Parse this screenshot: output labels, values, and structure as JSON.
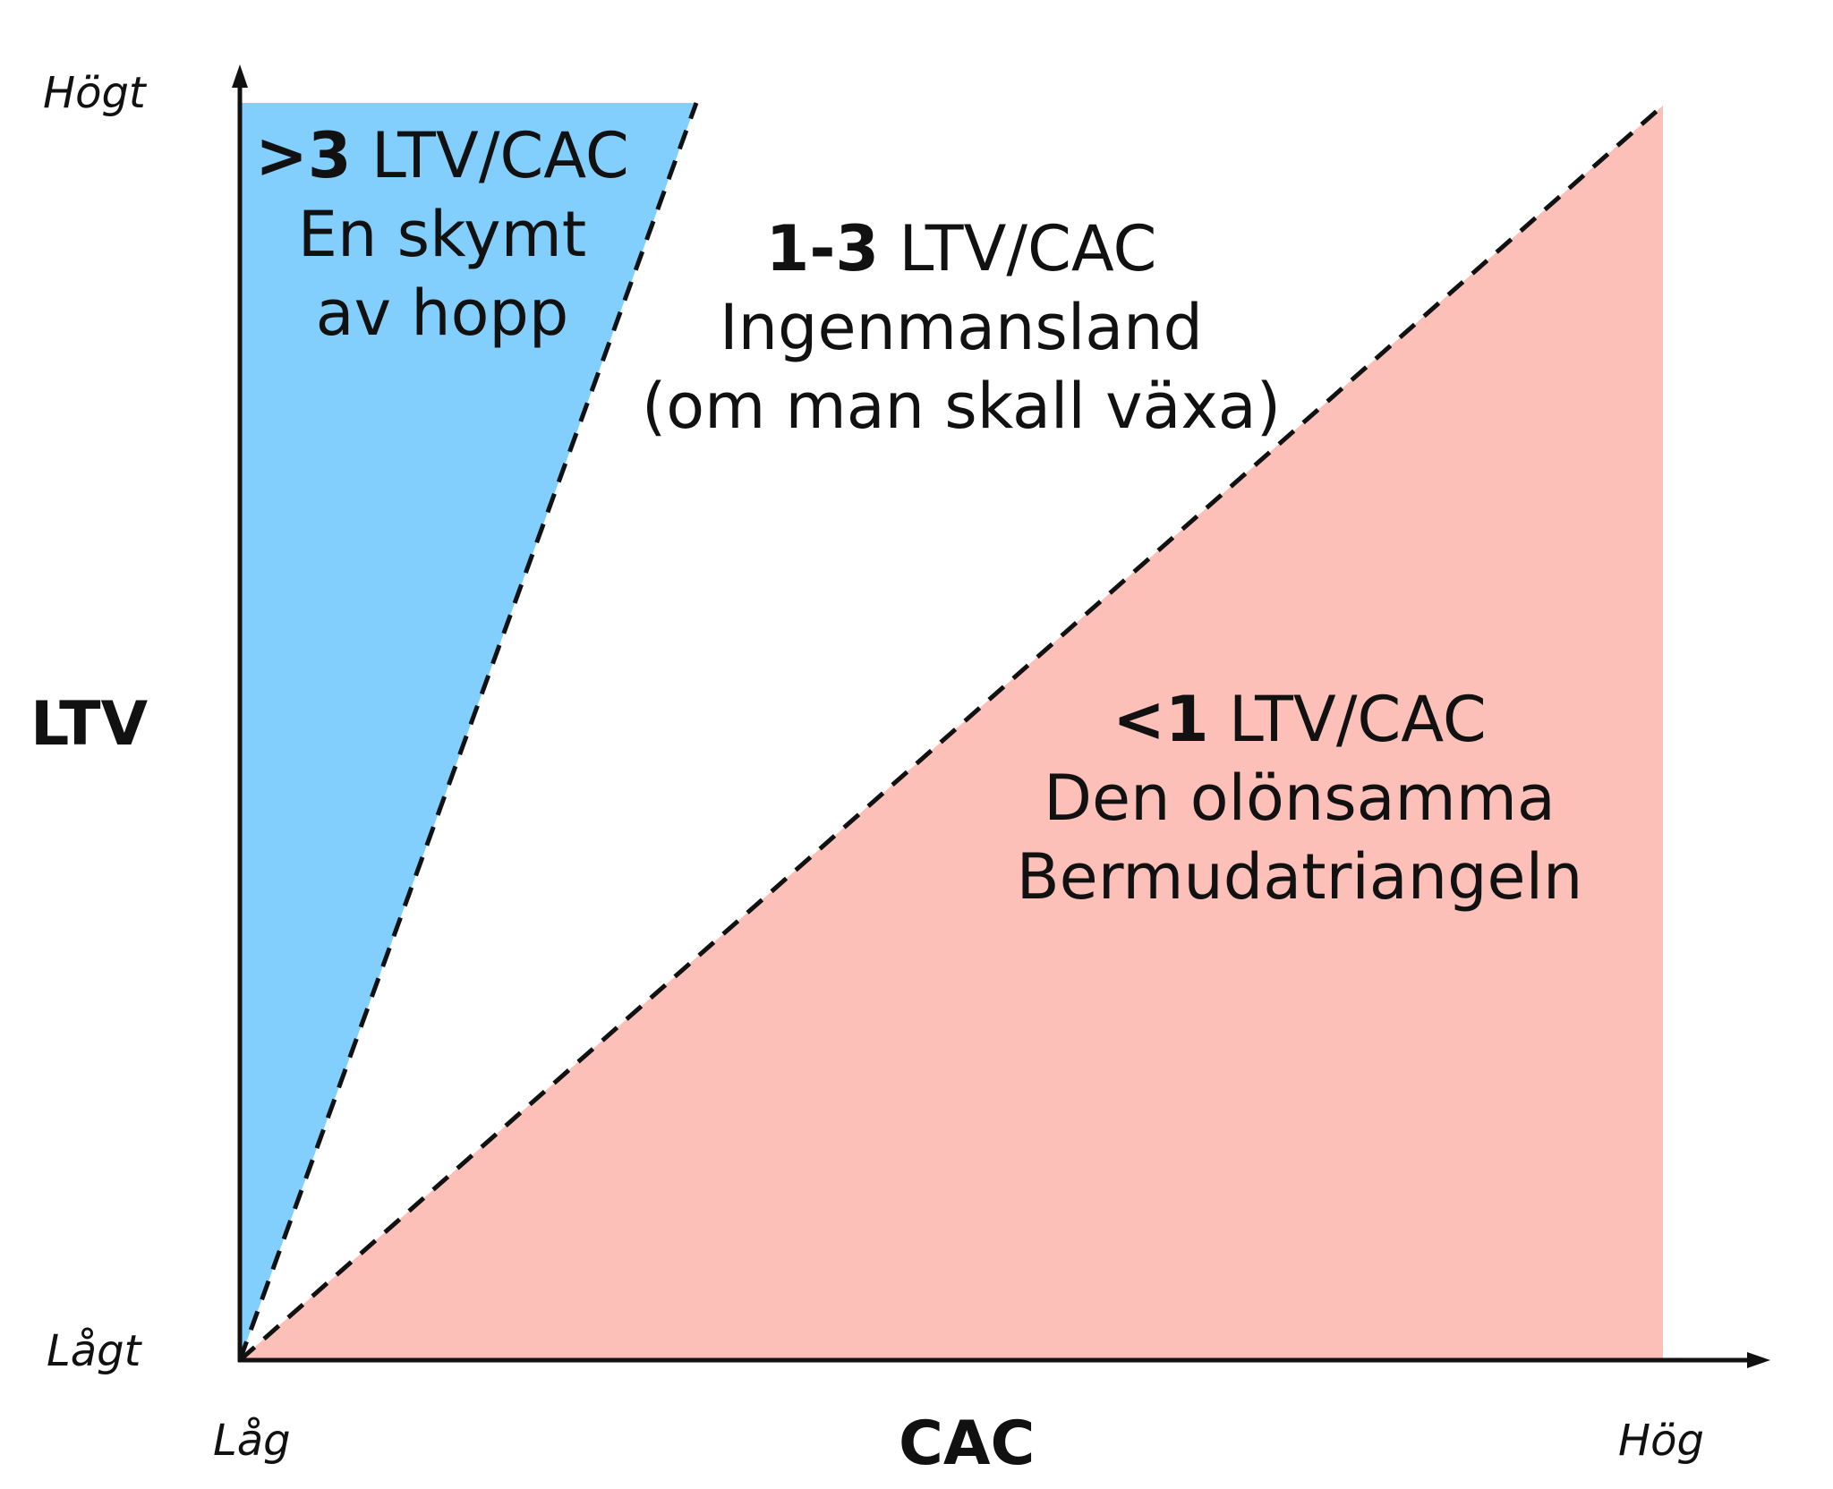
{
  "axes": {
    "y_title": "LTV",
    "y_top": "Högt",
    "y_bottom": "Lågt",
    "x_title": "CAC",
    "x_left": "Låg",
    "x_right": "Hög"
  },
  "zones": [
    {
      "id": "high",
      "ratio": ">3",
      "unit": "LTV/CAC",
      "lines": [
        "En skymt",
        "av hopp"
      ],
      "color": "#82CFFD"
    },
    {
      "id": "mid",
      "ratio": "1-3",
      "unit": "LTV/CAC",
      "lines": [
        "Ingenmansland",
        "(om man skall växa)"
      ],
      "color": "#FFFFFF"
    },
    {
      "id": "low",
      "ratio": "<1",
      "unit": "LTV/CAC",
      "lines": [
        "Den olönsamma",
        "Bermudatriangeln"
      ],
      "color": "#FCC0B8"
    }
  ]
}
